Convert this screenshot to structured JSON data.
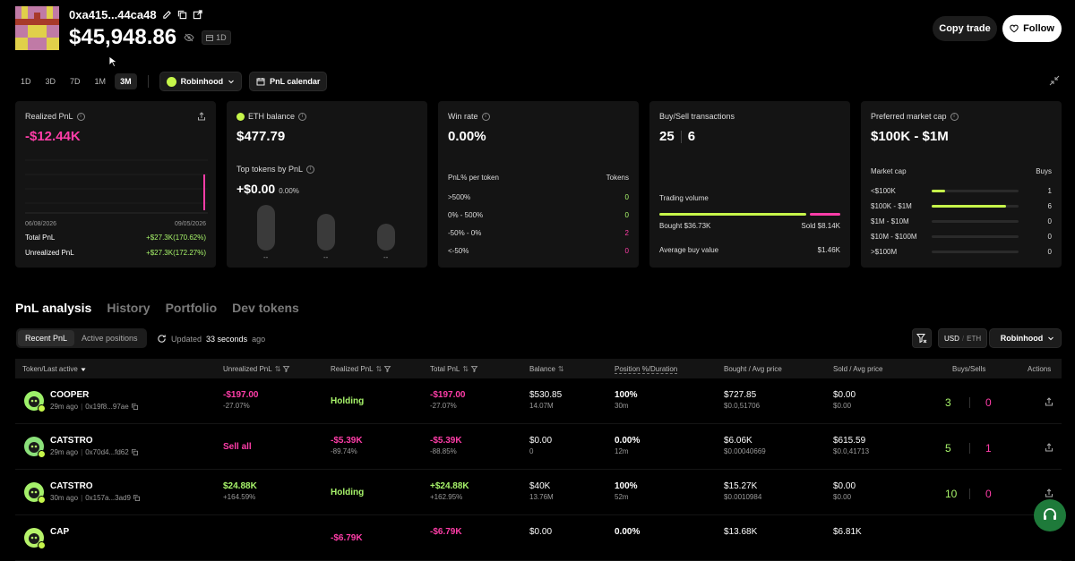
{
  "header": {
    "address": "0xa415...44ca48",
    "balance": "$45,948.86",
    "period_tag": "1D",
    "copy_trade_label": "Copy trade",
    "follow_label": "Follow"
  },
  "ranges": {
    "items": [
      "1D",
      "3D",
      "7D",
      "1M",
      "3M"
    ],
    "active": "3M",
    "chain_label": "Robinhood",
    "calendar_label": "PnL calendar"
  },
  "cards": {
    "realized": {
      "title": "Realized PnL",
      "value": "-$12.44K",
      "date_start": "06/08/2026",
      "date_end": "09/05/2026",
      "total_label": "Total PnL",
      "total_value": "+$27.3K(170.62%)",
      "unrealized_label": "Unrealized PnL",
      "unrealized_value": "+$27.3K(172.27%)"
    },
    "eth": {
      "title": "ETH balance",
      "value": "$477.79",
      "top_tokens_title": "Top tokens by PnL",
      "top_value": "+$0.00",
      "top_pct": "0.00%",
      "bar_labels": [
        "--",
        "--",
        "--"
      ]
    },
    "winrate": {
      "title": "Win rate",
      "value": "0.00%",
      "per_token_label": "PnL% per token",
      "tokens_label": "Tokens",
      "rows": [
        {
          "label": ">500%",
          "value": "0"
        },
        {
          "label": "0% - 500%",
          "value": "0"
        },
        {
          "label": "-50% - 0%",
          "value": "2"
        },
        {
          "label": "<-50%",
          "value": "0"
        }
      ]
    },
    "buysell": {
      "title": "Buy/Sell transactions",
      "buys": "25",
      "sells": "6",
      "volume_label": "Trading volume",
      "buy_fraction": 0.82,
      "bought": "Bought $36.73K",
      "sold": "Sold $8.14K",
      "avg_buy_label": "Average buy value",
      "avg_buy_value": "$1.46K"
    },
    "mcap": {
      "title": "Preferred market cap",
      "value": "$100K - $1M",
      "col_label": "Market cap",
      "col_buys": "Buys",
      "rows": [
        {
          "label": "<$100K",
          "value": "1",
          "fill": 0.15
        },
        {
          "label": "$100K - $1M",
          "value": "6",
          "fill": 0.85
        },
        {
          "label": "$1M - $10M",
          "value": "0",
          "fill": 0
        },
        {
          "label": "$10M - $100M",
          "value": "0",
          "fill": 0
        },
        {
          "label": ">$100M",
          "value": "0",
          "fill": 0
        }
      ]
    }
  },
  "tabs": [
    "PnL analysis",
    "History",
    "Portfolio",
    "Dev tokens"
  ],
  "subtabs": [
    "Recent PnL",
    "Active positions"
  ],
  "updated": {
    "prefix": "Updated",
    "value": "33 seconds",
    "suffix": "ago"
  },
  "tools": {
    "usd": "USD",
    "eth": "ETH",
    "chain": "Robinhood"
  },
  "table": {
    "headers": [
      "Token/Last active",
      "Unrealized PnL",
      "Realized PnL",
      "Total PnL",
      "Balance",
      "Position %/Duration",
      "Bought / Avg price",
      "Sold / Avg price",
      "Buys/Sells",
      "Actions"
    ],
    "rows": [
      {
        "name": "COOPER",
        "time": "29m ago",
        "addr": "0x19f8...97ae",
        "unreal": "-$197.00",
        "unreal_pct": "-27.07%",
        "unreal_color": "#ff3da8",
        "realized": "Holding",
        "realized_sub": "",
        "realized_color": "#a7f36a",
        "total": "-$197.00",
        "total_pct": "-27.07%",
        "total_color": "#ff3da8",
        "balance": "$530.85",
        "balance_sub": "14.07M",
        "position": "100%",
        "duration": "30m",
        "bought": "$727.85",
        "bought_avg": "$0.0,51706",
        "sold": "$0.00",
        "sold_avg": "$0.00",
        "buys": "3",
        "sells": "0"
      },
      {
        "name": "CATSTRO",
        "time": "29m ago",
        "addr": "0x70d4...fd62",
        "unreal": "Sell all",
        "unreal_pct": "",
        "unreal_color": "#ff3da8",
        "realized": "-$5.39K",
        "realized_sub": "-89.74%",
        "realized_color": "#ff3da8",
        "total": "-$5.39K",
        "total_pct": "-88.85%",
        "total_color": "#ff3da8",
        "balance": "$0.00",
        "balance_sub": "0",
        "position": "0.00%",
        "duration": "12m",
        "bought": "$6.06K",
        "bought_avg": "$0.00040669",
        "sold": "$615.59",
        "sold_avg": "$0.0,41713",
        "buys": "5",
        "sells": "1"
      },
      {
        "name": "CATSTRO",
        "time": "30m ago",
        "addr": "0x157a...3ad9",
        "unreal": "$24.88K",
        "unreal_pct": "+164.59%",
        "unreal_color": "#a7f36a",
        "realized": "Holding",
        "realized_sub": "",
        "realized_color": "#a7f36a",
        "total": "+$24.88K",
        "total_pct": "+162.95%",
        "total_color": "#a7f36a",
        "balance": "$40K",
        "balance_sub": "13.76M",
        "position": "100%",
        "duration": "52m",
        "bought": "$15.27K",
        "bought_avg": "$0.0010984",
        "sold": "$0.00",
        "sold_avg": "$0.00",
        "buys": "10",
        "sells": "0"
      },
      {
        "name": "CAP",
        "time": "",
        "addr": "",
        "unreal": "",
        "unreal_pct": "",
        "unreal_color": "#ff3da8",
        "realized": "-$6.79K",
        "realized_sub": "",
        "realized_color": "#ff3da8",
        "total": "-$6.79K",
        "total_pct": "",
        "total_color": "#ff3da8",
        "balance": "$0.00",
        "balance_sub": "",
        "position": "0.00%",
        "duration": "",
        "bought": "$13.68K",
        "bought_avg": "",
        "sold": "$6.81K",
        "sold_avg": "",
        "buys": "",
        "sells": ""
      }
    ]
  },
  "colors": {
    "green": "#a7f36a",
    "pink": "#ff3da8",
    "accent": "#c6f64a"
  }
}
